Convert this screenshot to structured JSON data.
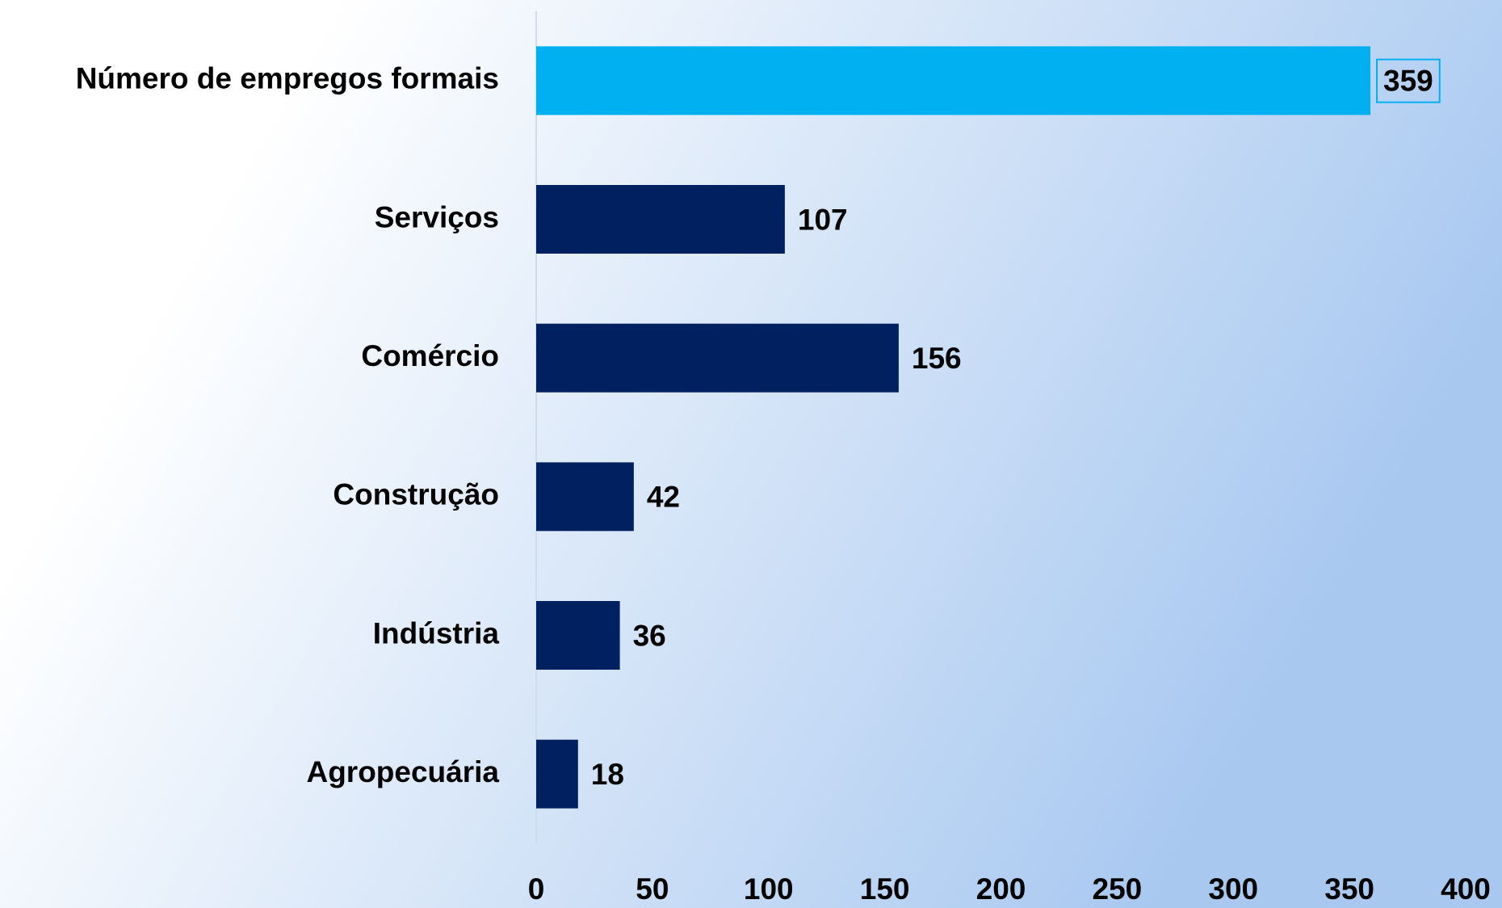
{
  "chart_data": {
    "type": "bar",
    "orientation": "horizontal",
    "categories": [
      "Número de empregos formais",
      "Serviços",
      "Comércio",
      "Construção",
      "Indústria",
      "Agropecuária"
    ],
    "values": [
      359,
      107,
      156,
      42,
      36,
      18
    ],
    "colors": [
      "#00b0f0",
      "#002060",
      "#002060",
      "#002060",
      "#002060",
      "#002060"
    ],
    "xlim": [
      0,
      400
    ],
    "xticks": [
      0,
      50,
      100,
      150,
      200,
      250,
      300,
      350,
      400
    ],
    "grid": false
  }
}
